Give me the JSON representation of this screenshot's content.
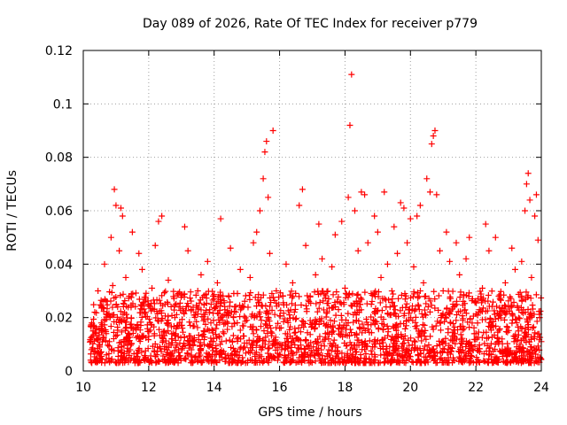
{
  "chart_data": {
    "type": "scatter",
    "title": "Day 089 of 2026, Rate Of TEC Index for receiver p779",
    "xlabel": "GPS time / hours",
    "ylabel": "ROTI / TECUs",
    "xlim": [
      10,
      24
    ],
    "ylim": [
      0,
      0.12
    ],
    "x_ticks": [
      10,
      12,
      14,
      16,
      18,
      20,
      22,
      24
    ],
    "x_tick_labels": [
      "10",
      "12",
      "14",
      "16",
      "18",
      "20",
      "22",
      "24"
    ],
    "y_ticks": [
      0,
      0.02,
      0.04,
      0.06,
      0.08,
      0.1,
      0.12
    ],
    "y_tick_labels": [
      "0",
      "0.02",
      "0.04",
      "0.06",
      "0.08",
      "0.1",
      "0.12"
    ],
    "grid": true,
    "marker": "+",
    "series": [
      {
        "name": "ROTI",
        "color": "#ff0000",
        "points": [
          [
            10.25,
            0.008
          ],
          [
            10.3,
            0.015
          ],
          [
            10.35,
            0.022
          ],
          [
            10.4,
            0.012
          ],
          [
            10.45,
            0.03
          ],
          [
            10.5,
            0.009
          ],
          [
            10.55,
            0.018
          ],
          [
            10.6,
            0.026
          ],
          [
            10.65,
            0.04
          ],
          [
            10.7,
            0.014
          ],
          [
            10.75,
            0.021
          ],
          [
            10.8,
            0.011
          ],
          [
            10.85,
            0.05
          ],
          [
            10.9,
            0.032
          ],
          [
            10.95,
            0.068
          ],
          [
            11.0,
            0.062
          ],
          [
            11.05,
            0.024
          ],
          [
            11.1,
            0.045
          ],
          [
            11.15,
            0.061
          ],
          [
            11.2,
            0.058
          ],
          [
            11.25,
            0.019
          ],
          [
            11.3,
            0.035
          ],
          [
            11.35,
            0.01
          ],
          [
            11.4,
            0.028
          ],
          [
            11.5,
            0.052
          ],
          [
            11.6,
            0.016
          ],
          [
            11.7,
            0.044
          ],
          [
            11.8,
            0.038
          ],
          [
            11.9,
            0.022
          ],
          [
            12.0,
            0.013
          ],
          [
            12.1,
            0.031
          ],
          [
            12.2,
            0.047
          ],
          [
            12.3,
            0.056
          ],
          [
            12.4,
            0.058
          ],
          [
            12.5,
            0.025
          ],
          [
            12.6,
            0.034
          ],
          [
            12.7,
            0.012
          ],
          [
            12.8,
            0.02
          ],
          [
            12.9,
            0.029
          ],
          [
            13.0,
            0.017
          ],
          [
            13.1,
            0.054
          ],
          [
            13.2,
            0.045
          ],
          [
            13.3,
            0.023
          ],
          [
            13.4,
            0.011
          ],
          [
            13.5,
            0.03
          ],
          [
            13.6,
            0.036
          ],
          [
            13.7,
            0.015
          ],
          [
            13.8,
            0.041
          ],
          [
            13.9,
            0.018
          ],
          [
            14.0,
            0.027
          ],
          [
            14.1,
            0.033
          ],
          [
            14.2,
            0.057
          ],
          [
            14.3,
            0.014
          ],
          [
            14.4,
            0.022
          ],
          [
            14.5,
            0.046
          ],
          [
            14.6,
            0.029
          ],
          [
            14.7,
            0.012
          ],
          [
            14.8,
            0.038
          ],
          [
            14.9,
            0.024
          ],
          [
            15.0,
            0.019
          ],
          [
            15.1,
            0.035
          ],
          [
            15.2,
            0.048
          ],
          [
            15.3,
            0.052
          ],
          [
            15.4,
            0.06
          ],
          [
            15.5,
            0.072
          ],
          [
            15.55,
            0.082
          ],
          [
            15.6,
            0.086
          ],
          [
            15.65,
            0.065
          ],
          [
            15.7,
            0.044
          ],
          [
            15.8,
            0.09
          ],
          [
            15.9,
            0.03
          ],
          [
            16.0,
            0.016
          ],
          [
            16.1,
            0.028
          ],
          [
            16.2,
            0.04
          ],
          [
            16.3,
            0.021
          ],
          [
            16.4,
            0.033
          ],
          [
            16.5,
            0.012
          ],
          [
            16.6,
            0.062
          ],
          [
            16.7,
            0.068
          ],
          [
            16.8,
            0.047
          ],
          [
            16.9,
            0.026
          ],
          [
            17.0,
            0.018
          ],
          [
            17.1,
            0.036
          ],
          [
            17.2,
            0.055
          ],
          [
            17.3,
            0.042
          ],
          [
            17.4,
            0.014
          ],
          [
            17.5,
            0.027
          ],
          [
            17.6,
            0.039
          ],
          [
            17.7,
            0.051
          ],
          [
            17.8,
            0.023
          ],
          [
            17.9,
            0.056
          ],
          [
            18.0,
            0.031
          ],
          [
            18.1,
            0.065
          ],
          [
            18.15,
            0.092
          ],
          [
            18.2,
            0.111
          ],
          [
            18.3,
            0.06
          ],
          [
            18.4,
            0.045
          ],
          [
            18.5,
            0.067
          ],
          [
            18.6,
            0.066
          ],
          [
            18.7,
            0.048
          ],
          [
            18.8,
            0.029
          ],
          [
            18.9,
            0.058
          ],
          [
            19.0,
            0.052
          ],
          [
            19.1,
            0.035
          ],
          [
            19.2,
            0.067
          ],
          [
            19.3,
            0.04
          ],
          [
            19.4,
            0.021
          ],
          [
            19.5,
            0.054
          ],
          [
            19.6,
            0.044
          ],
          [
            19.7,
            0.063
          ],
          [
            19.8,
            0.061
          ],
          [
            19.9,
            0.048
          ],
          [
            20.0,
            0.057
          ],
          [
            20.1,
            0.039
          ],
          [
            20.2,
            0.058
          ],
          [
            20.3,
            0.062
          ],
          [
            20.4,
            0.033
          ],
          [
            20.5,
            0.072
          ],
          [
            20.6,
            0.067
          ],
          [
            20.65,
            0.085
          ],
          [
            20.7,
            0.088
          ],
          [
            20.75,
            0.09
          ],
          [
            20.8,
            0.066
          ],
          [
            20.9,
            0.045
          ],
          [
            21.0,
            0.03
          ],
          [
            21.1,
            0.052
          ],
          [
            21.2,
            0.041
          ],
          [
            21.3,
            0.025
          ],
          [
            21.4,
            0.048
          ],
          [
            21.5,
            0.036
          ],
          [
            21.6,
            0.019
          ],
          [
            21.7,
            0.042
          ],
          [
            21.8,
            0.05
          ],
          [
            21.9,
            0.027
          ],
          [
            22.0,
            0.014
          ],
          [
            22.1,
            0.022
          ],
          [
            22.2,
            0.031
          ],
          [
            22.3,
            0.055
          ],
          [
            22.4,
            0.045
          ],
          [
            22.5,
            0.017
          ],
          [
            22.6,
            0.05
          ],
          [
            22.7,
            0.028
          ],
          [
            22.8,
            0.012
          ],
          [
            22.9,
            0.033
          ],
          [
            23.0,
            0.024
          ],
          [
            23.1,
            0.046
          ],
          [
            23.2,
            0.038
          ],
          [
            23.3,
            0.015
          ],
          [
            23.4,
            0.041
          ],
          [
            23.5,
            0.06
          ],
          [
            23.55,
            0.07
          ],
          [
            23.6,
            0.074
          ],
          [
            23.65,
            0.064
          ],
          [
            23.7,
            0.035
          ],
          [
            23.8,
            0.058
          ],
          [
            23.85,
            0.066
          ],
          [
            23.9,
            0.049
          ],
          [
            23.95,
            0.02
          ],
          [
            24.0,
            0.011
          ]
        ]
      }
    ],
    "background_band": {
      "description_only_numeric": true,
      "x_range": [
        10.2,
        24.0
      ],
      "y_range": [
        0.003,
        0.03
      ]
    }
  }
}
